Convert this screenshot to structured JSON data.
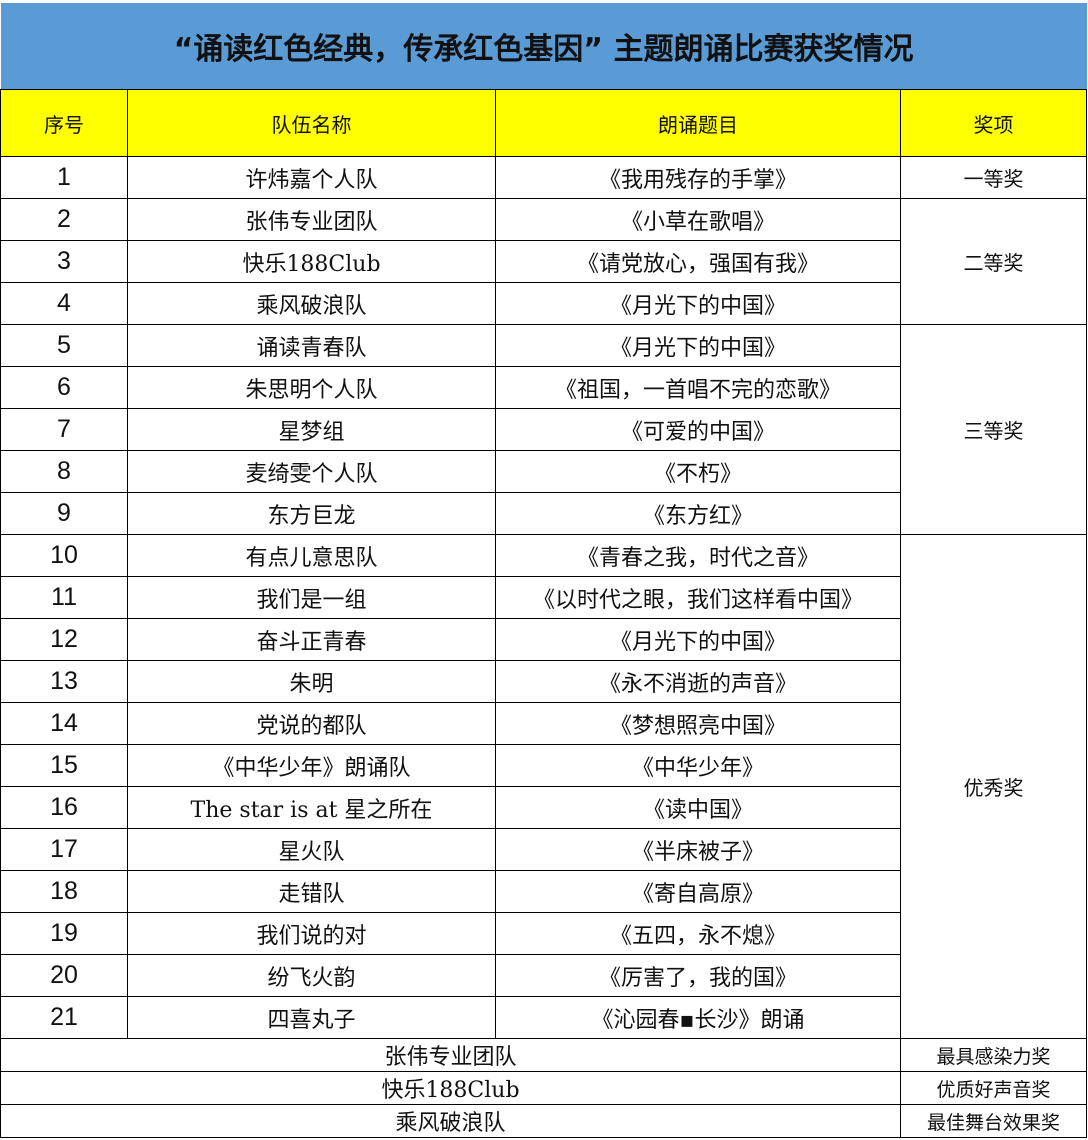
{
  "title": "“诵读红色经典，传承红色基因”  主题朗诵比赛获奖情况",
  "headers": {
    "no": "序号",
    "team": "队伍名称",
    "piece": "朗诵题目",
    "award": "奖项"
  },
  "rows": [
    {
      "no": "1",
      "team": "许炜嘉个人队",
      "piece": "《我用残存的手掌》"
    },
    {
      "no": "2",
      "team": "张伟专业团队",
      "piece": "《小草在歌唱》"
    },
    {
      "no": "3",
      "team": "快乐188Club",
      "piece": "《请党放心，强国有我》"
    },
    {
      "no": "4",
      "team": "乘风破浪队",
      "piece": "《月光下的中国》"
    },
    {
      "no": "5",
      "team": "诵读青春队",
      "piece": "《月光下的中国》"
    },
    {
      "no": "6",
      "team": "朱思明个人队",
      "piece": "《祖国，一首唱不完的恋歌》"
    },
    {
      "no": "7",
      "team": "星梦组",
      "piece": "《可爱的中国》"
    },
    {
      "no": "8",
      "team": "麦绮雯个人队",
      "piece": "《不朽》"
    },
    {
      "no": "9",
      "team": "东方巨龙",
      "piece": "《东方红》"
    },
    {
      "no": "10",
      "team": "有点儿意思队",
      "piece": "《青春之我，时代之音》"
    },
    {
      "no": "11",
      "team": "我们是一组",
      "piece": "《以时代之眼，我们这样看中国》"
    },
    {
      "no": "12",
      "team": "奋斗正青春",
      "piece": "《月光下的中国》"
    },
    {
      "no": "13",
      "team": "朱明",
      "piece": "《永不消逝的声音》"
    },
    {
      "no": "14",
      "team": "党说的都队",
      "piece": "《梦想照亮中国》"
    },
    {
      "no": "15",
      "team": "《中华少年》朗诵队",
      "piece": "《中华少年》"
    },
    {
      "no": "16",
      "team": "The star is at   星之所在",
      "piece": "《读中国》"
    },
    {
      "no": "17",
      "team": "星火队",
      "piece": "《半床被子》"
    },
    {
      "no": "18",
      "team": "走错队",
      "piece": "《寄自高原》"
    },
    {
      "no": "19",
      "team": "我们说的对",
      "piece": "《五四，永不熄》"
    },
    {
      "no": "20",
      "team": "纷飞火韵",
      "piece": "《厉害了，我的国》"
    },
    {
      "no": "21",
      "team": "四喜丸子",
      "piece": "《沁园春▪长沙》朗诵"
    }
  ],
  "awards": [
    {
      "label": "一等奖",
      "start": 1,
      "span": 1
    },
    {
      "label": "二等奖",
      "start": 2,
      "span": 3
    },
    {
      "label": "三等奖",
      "start": 5,
      "span": 5
    },
    {
      "label": "优秀奖",
      "start": 10,
      "span": 12
    }
  ],
  "special_awards": [
    {
      "team": "张伟专业团队",
      "award": "最具感染力奖"
    },
    {
      "team": "快乐188Club",
      "award": "优质好声音奖"
    },
    {
      "team": "乘风破浪队",
      "award": "最佳舞台效果奖"
    }
  ]
}
